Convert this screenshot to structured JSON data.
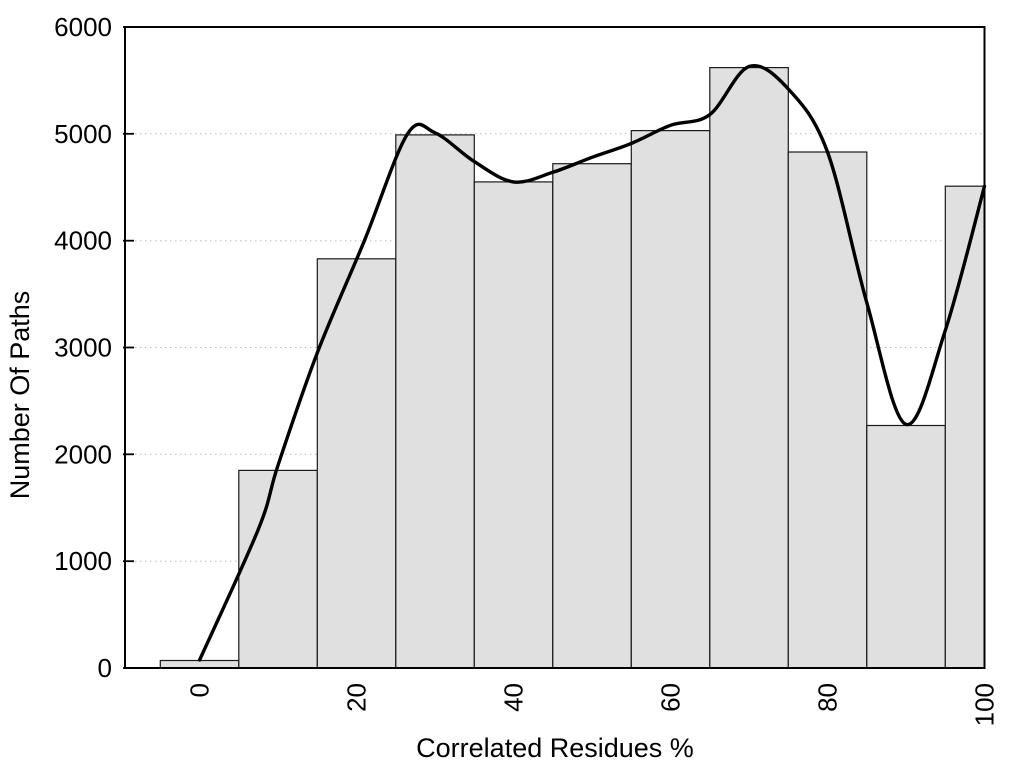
{
  "chart_data": {
    "type": "bar",
    "subtype": "histogram-with-smoothed-curve",
    "title": "",
    "xlabel": "Correlated Residues %",
    "ylabel": "Number Of Paths",
    "xlim": [
      -9.5,
      100
    ],
    "ylim": [
      0,
      6000
    ],
    "x_ticks": [
      0,
      20,
      40,
      60,
      80,
      100
    ],
    "y_ticks": [
      0,
      1000,
      2000,
      3000,
      4000,
      5000,
      6000
    ],
    "grid": {
      "horizontal": true,
      "style": "dotted",
      "at": [
        1000,
        2000,
        3000,
        4000,
        5000
      ]
    },
    "legend": "none",
    "bins": [
      {
        "x0": -5,
        "x1": 5,
        "value": 70
      },
      {
        "x0": 5,
        "x1": 15,
        "value": 1850
      },
      {
        "x0": 15,
        "x1": 25,
        "value": 3830
      },
      {
        "x0": 25,
        "x1": 35,
        "value": 4990
      },
      {
        "x0": 35,
        "x1": 45,
        "value": 4550
      },
      {
        "x0": 45,
        "x1": 55,
        "value": 4720
      },
      {
        "x0": 55,
        "x1": 65,
        "value": 5030
      },
      {
        "x0": 65,
        "x1": 75,
        "value": 5620
      },
      {
        "x0": 75,
        "x1": 85,
        "value": 4830
      },
      {
        "x0": 85,
        "x1": 95,
        "value": 2270
      },
      {
        "x0": 95,
        "x1": 100,
        "value": 4510
      }
    ],
    "curve": {
      "name": "smoothed-trend",
      "points": [
        [
          0,
          75
        ],
        [
          7.5,
          1300
        ],
        [
          10,
          1900
        ],
        [
          15,
          2950
        ],
        [
          21,
          4000
        ],
        [
          26.5,
          5000
        ],
        [
          30,
          5010
        ],
        [
          35,
          4740
        ],
        [
          40,
          4550
        ],
        [
          45,
          4640
        ],
        [
          50,
          4780
        ],
        [
          55,
          4910
        ],
        [
          60,
          5080
        ],
        [
          65,
          5180
        ],
        [
          70,
          5630
        ],
        [
          75,
          5420
        ],
        [
          80,
          4830
        ],
        [
          85,
          3420
        ],
        [
          90,
          2280
        ],
        [
          95,
          3160
        ],
        [
          100,
          4510
        ]
      ]
    },
    "colors": {
      "bar_fill": "#e0e0e0",
      "bar_stroke": "#1a1a1a",
      "curve": "#000000",
      "grid": "#bdbdbd",
      "frame": "#000000",
      "background": "#ffffff"
    }
  }
}
